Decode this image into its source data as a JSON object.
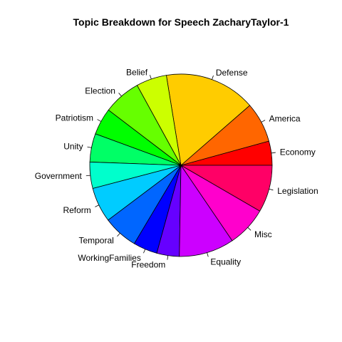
{
  "chart_data": {
    "type": "pie",
    "title": "Topic Breakdown for Speech ZacharyTaylor-1",
    "start_angle_deg": 0,
    "direction": "counterclockwise",
    "slices": [
      {
        "label": "Economy",
        "value": 4.5,
        "color": "#FF0000"
      },
      {
        "label": "America",
        "value": 7.5,
        "color": "#FF6600"
      },
      {
        "label": "Defense",
        "value": 17.0,
        "color": "#FFCC00"
      },
      {
        "label": "Belief",
        "value": 5.7,
        "color": "#CCFF00"
      },
      {
        "label": "Election",
        "value": 7.0,
        "color": "#66FF00"
      },
      {
        "label": "Patriotism",
        "value": 5.0,
        "color": "#00FF00"
      },
      {
        "label": "Unity",
        "value": 5.3,
        "color": "#00FF66"
      },
      {
        "label": "Government",
        "value": 4.9,
        "color": "#00FFCC"
      },
      {
        "label": "Reform",
        "value": 6.5,
        "color": "#00CCFF"
      },
      {
        "label": "Temporal",
        "value": 6.5,
        "color": "#0066FF"
      },
      {
        "label": "WorkingFamilies",
        "value": 4.5,
        "color": "#0000FF"
      },
      {
        "label": "Freedom",
        "value": 4.2,
        "color": "#6600FF"
      },
      {
        "label": "Equality",
        "value": 10.3,
        "color": "#CC00FF"
      },
      {
        "label": "Misc",
        "value": 7.5,
        "color": "#FF00CC"
      },
      {
        "label": "Legislation",
        "value": 8.8,
        "color": "#FF0066"
      }
    ]
  }
}
